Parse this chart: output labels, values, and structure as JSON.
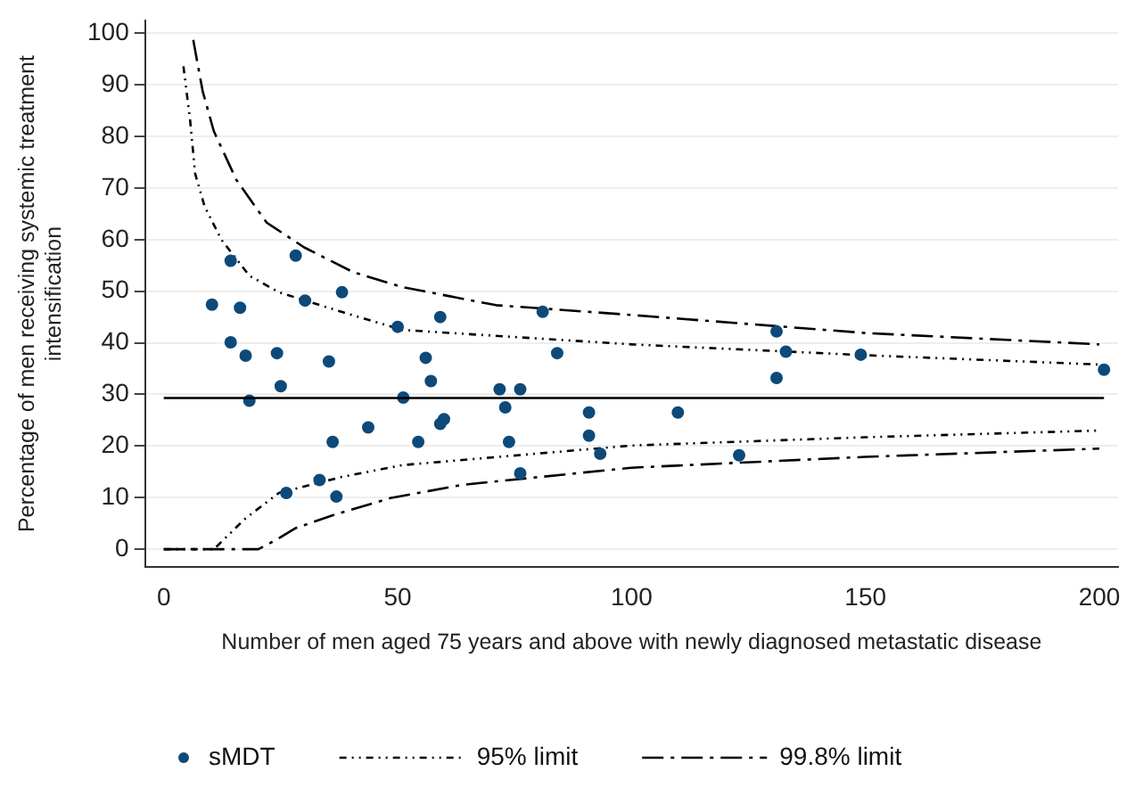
{
  "chart_data": {
    "type": "scatter",
    "xlabel": "Number of men aged 75 years and above with newly diagnosed metastatic disease",
    "ylabel": "Percentage of men receiving systemic treatment intensification",
    "xlim": [
      -4,
      204
    ],
    "xticks": [
      0,
      50,
      100,
      150,
      200
    ],
    "ylim": [
      -3.5,
      102.5
    ],
    "yticks": [
      0,
      10,
      20,
      30,
      40,
      50,
      60,
      70,
      80,
      90,
      100
    ],
    "grid": "y",
    "legend": "bottom",
    "ref_lines": [
      {
        "axis": "y",
        "value": 29.3,
        "color": "#000000",
        "line_style": "solid"
      }
    ],
    "series": [
      {
        "name": "sMDT",
        "marker": "circle",
        "color": "#0d4a7a",
        "x": [
          10.3,
          14.3,
          16.3,
          14.3,
          17.5,
          18.3,
          24.2,
          25,
          28.2,
          30.2,
          38.1,
          35.3,
          36.1,
          26.2,
          33.3,
          36.9,
          43.7,
          50,
          51.2,
          54.4,
          56,
          57.1,
          59.1,
          59.9,
          59.1,
          71.8,
          73,
          73.8,
          76.2,
          76.2,
          81,
          84.1,
          90.9,
          90.9,
          93.3,
          109.9,
          123,
          131,
          131,
          133,
          149,
          201
        ],
        "values": [
          47.4,
          55.9,
          46.8,
          40.1,
          37.5,
          28.8,
          38,
          31.6,
          56.9,
          48.2,
          49.8,
          36.4,
          20.8,
          10.9,
          13.4,
          10.2,
          23.6,
          43.1,
          29.4,
          20.8,
          37.1,
          32.6,
          45,
          25.2,
          24.3,
          31,
          27.5,
          20.8,
          31,
          14.7,
          46,
          38,
          26.5,
          22,
          18.5,
          26.5,
          18.2,
          42.2,
          33.2,
          38.3,
          37.7,
          34.8
        ]
      },
      {
        "name": "95% limit",
        "type": "line",
        "marker": "none",
        "line_style": "dotted",
        "color": "#000000",
        "x": [
          4.2,
          5.6,
          6.7,
          8.7,
          12.3,
          18.3,
          24.6,
          38,
          51,
          100,
          150,
          200
        ],
        "values": [
          93.6,
          83.4,
          72.8,
          66.5,
          60,
          53,
          49.8,
          46,
          42.5,
          39.7,
          37.6,
          35.8
        ]
      },
      {
        "type": "line",
        "marker": "none",
        "line_style": "dotted",
        "color": "#000000",
        "x": [
          0,
          10.7,
          17.5,
          24.6,
          38,
          51,
          100,
          150,
          200
        ],
        "values": [
          0,
          0,
          6,
          10.9,
          14,
          16.3,
          20.1,
          21.7,
          23
        ]
      },
      {
        "name": "99.8% limit",
        "type": "line",
        "marker": "none",
        "line_style": "dashed",
        "color": "#000000",
        "x": [
          6.3,
          8.3,
          10.7,
          15.5,
          22,
          30,
          40.5,
          51,
          71,
          100,
          150,
          200
        ],
        "values": [
          98.7,
          88.8,
          81,
          71.6,
          63.3,
          58.5,
          53.7,
          50.8,
          47.3,
          45.4,
          41.9,
          39.7
        ]
      },
      {
        "type": "line",
        "marker": "none",
        "line_style": "dashed",
        "color": "#000000",
        "x": [
          0,
          20.2,
          24.2,
          28.2,
          36.5,
          48.4,
          64,
          100,
          150,
          200
        ],
        "values": [
          0,
          0,
          1.9,
          4.1,
          6.7,
          9.9,
          12.5,
          15.8,
          17.9,
          19.5
        ]
      }
    ]
  }
}
